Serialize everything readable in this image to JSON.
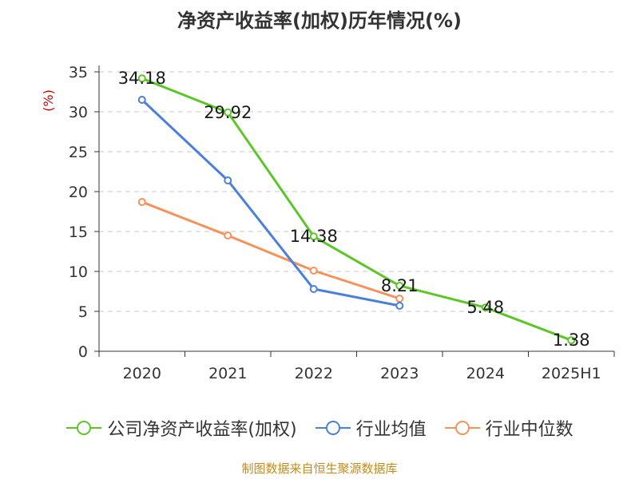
{
  "chart_data": {
    "type": "line",
    "title": "净资产收益率(加权)历年情况(%)",
    "ylabel": "(%)",
    "categories": [
      "2020",
      "2021",
      "2022",
      "2023",
      "2024",
      "2025H1"
    ],
    "ylim": [
      0,
      35
    ],
    "yticks": [
      0,
      5,
      10,
      15,
      20,
      25,
      30,
      35
    ],
    "grid": true,
    "legend_position": "bottom",
    "series": [
      {
        "name": "公司净资产收益率(加权)",
        "color": "#5cc629",
        "values": [
          34.18,
          29.92,
          14.38,
          8.21,
          5.48,
          1.38
        ],
        "labels": true
      },
      {
        "name": "行业均值",
        "color": "#4a7fdc",
        "values": [
          31.5,
          21.4,
          7.8,
          5.7,
          null,
          null
        ],
        "labels": false
      },
      {
        "name": "行业中位数",
        "color": "#f6915a",
        "values": [
          18.7,
          14.5,
          10.1,
          6.6,
          null,
          null
        ],
        "labels": false
      }
    ]
  },
  "footer": {
    "source": "制图数据来自恒生聚源数据库"
  },
  "colors": {
    "ylabel": "#cc0000",
    "axis": "#333333",
    "grid": "#c8c8c8",
    "source": "#c38b1e"
  }
}
